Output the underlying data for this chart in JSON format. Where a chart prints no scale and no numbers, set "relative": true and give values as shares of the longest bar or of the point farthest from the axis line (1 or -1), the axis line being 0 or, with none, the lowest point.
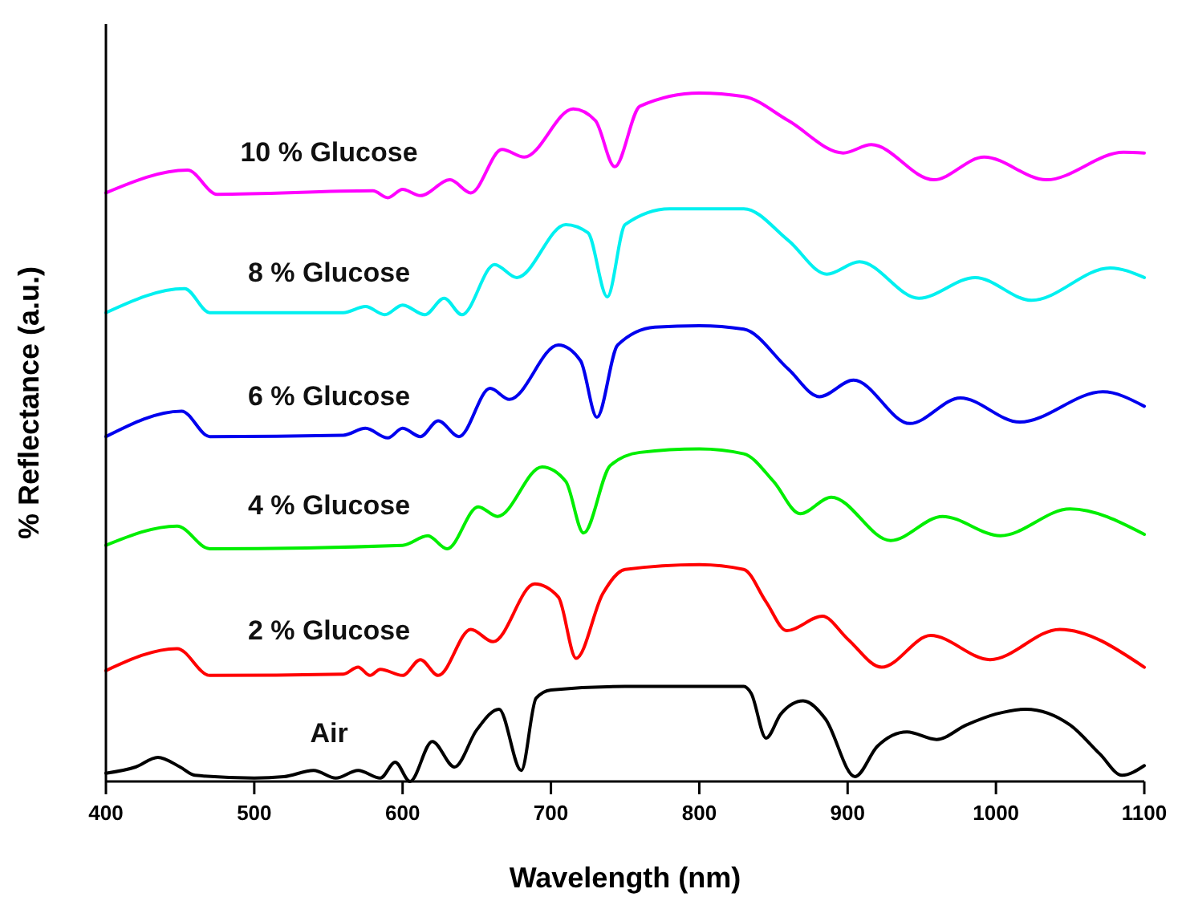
{
  "chart_data": {
    "type": "line",
    "xlabel": "Wavelength (nm)",
    "ylabel": "% Reflectance (a.u.)",
    "relative": true,
    "xlim": [
      400,
      1100
    ],
    "xticks": [
      400,
      500,
      600,
      700,
      800,
      900,
      1000,
      1100
    ],
    "grid": false,
    "legend": false,
    "marker": "none",
    "line_style": "solid",
    "series": [
      {
        "name": "Air",
        "color": "#000000",
        "x": [
          400,
          420,
          435,
          450,
          460,
          500,
          520,
          540,
          555,
          570,
          585,
          595,
          605,
          620,
          635,
          650,
          665,
          680,
          690,
          700,
          750,
          800,
          830,
          835,
          845,
          855,
          870,
          885,
          905,
          920,
          940,
          960,
          980,
          1000,
          1020,
          1050,
          1070,
          1085,
          1100
        ],
        "values": [
          0.012,
          0.021,
          0.035,
          0.021,
          0.009,
          0.005,
          0.007,
          0.016,
          0.005,
          0.016,
          0.005,
          0.028,
          0,
          0.058,
          0.021,
          0.075,
          0.105,
          0.016,
          0.121,
          0.133,
          0.138,
          0.138,
          0.138,
          0.128,
          0.063,
          0.098,
          0.117,
          0.091,
          0.007,
          0.051,
          0.072,
          0.061,
          0.082,
          0.098,
          0.105,
          0.082,
          0.04,
          0.009,
          0.023
        ]
      },
      {
        "name": "2 % Glucose",
        "color": "#ff0000",
        "x": [
          400,
          448,
          470,
          560,
          570,
          578,
          585,
          600,
          612,
          624,
          646,
          661,
          689,
          705,
          717,
          735,
          750,
          800,
          830,
          845,
          859,
          883,
          900,
          923,
          956,
          996,
          1043,
          1100
        ],
        "values": [
          0.161,
          0.193,
          0.154,
          0.156,
          0.166,
          0.154,
          0.163,
          0.154,
          0.177,
          0.154,
          0.221,
          0.203,
          0.287,
          0.268,
          0.179,
          0.273,
          0.308,
          0.315,
          0.308,
          0.261,
          0.219,
          0.24,
          0.207,
          0.166,
          0.212,
          0.177,
          0.221,
          0.166
        ]
      },
      {
        "name": "4 % Glucose",
        "color": "#00ee00",
        "x": [
          400,
          448,
          470,
          600,
          617,
          630,
          651,
          664,
          694,
          710,
          722,
          740,
          760,
          800,
          830,
          850,
          868,
          889,
          929,
          964,
          1003,
          1050,
          1100
        ],
        "values": [
          0.343,
          0.371,
          0.338,
          0.343,
          0.357,
          0.338,
          0.399,
          0.385,
          0.457,
          0.436,
          0.361,
          0.459,
          0.478,
          0.483,
          0.476,
          0.436,
          0.389,
          0.413,
          0.35,
          0.385,
          0.357,
          0.396,
          0.359
        ]
      },
      {
        "name": "6 % Glucose",
        "color": "#0000ee",
        "x": [
          400,
          451,
          470,
          560,
          575,
          590,
          600,
          612,
          624,
          638,
          659,
          672,
          705,
          720,
          731,
          745,
          770,
          800,
          830,
          860,
          881,
          904,
          942,
          976,
          1016,
          1072,
          1100
        ],
        "values": [
          0.501,
          0.538,
          0.501,
          0.503,
          0.513,
          0.499,
          0.513,
          0.501,
          0.524,
          0.501,
          0.571,
          0.555,
          0.634,
          0.611,
          0.529,
          0.634,
          0.66,
          0.662,
          0.657,
          0.599,
          0.559,
          0.583,
          0.52,
          0.557,
          0.522,
          0.566,
          0.545
        ]
      },
      {
        "name": "8 % Glucose",
        "color": "#00f0f0",
        "x": [
          400,
          453,
          470,
          560,
          575,
          588,
          600,
          615,
          628,
          640,
          662,
          677,
          710,
          725,
          738,
          750,
          780,
          830,
          860,
          886,
          908,
          948,
          986,
          1024,
          1077,
          1100
        ],
        "values": [
          0.681,
          0.716,
          0.681,
          0.681,
          0.69,
          0.678,
          0.692,
          0.678,
          0.702,
          0.678,
          0.751,
          0.732,
          0.809,
          0.797,
          0.704,
          0.809,
          0.832,
          0.832,
          0.786,
          0.737,
          0.755,
          0.702,
          0.732,
          0.699,
          0.746,
          0.732
        ]
      },
      {
        "name": "10 % Glucose",
        "color": "#ff00ff",
        "x": [
          400,
          455,
          475,
          580,
          590,
          600,
          612,
          632,
          646,
          667,
          682,
          715,
          730,
          743,
          760,
          800,
          830,
          860,
          897,
          916,
          958,
          992,
          1034,
          1086,
          1100
        ],
        "values": [
          0.855,
          0.888,
          0.853,
          0.858,
          0.848,
          0.86,
          0.851,
          0.874,
          0.855,
          0.918,
          0.907,
          0.977,
          0.96,
          0.893,
          0.981,
          1,
          0.995,
          0.96,
          0.913,
          0.925,
          0.874,
          0.907,
          0.874,
          0.914,
          0.913
        ]
      }
    ]
  }
}
